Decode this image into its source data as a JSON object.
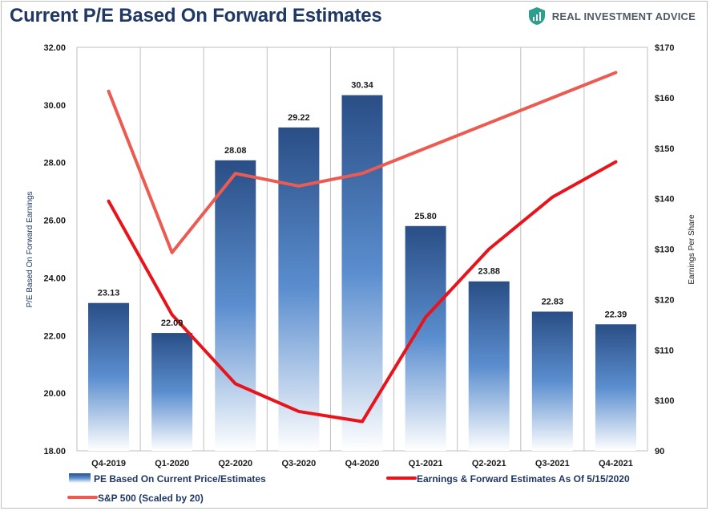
{
  "header": {
    "title": "Current P/E Based On Forward Estimates",
    "brand": "REAL INVESTMENT ADVICE",
    "brand_icon": "shield-logo-icon",
    "brand_color": "#2e9e8f"
  },
  "chart_data": {
    "type": "bar",
    "categories": [
      "Q4-2019",
      "Q1-2020",
      "Q2-2020",
      "Q3-2020",
      "Q4-2020",
      "Q1-2021",
      "Q2-2021",
      "Q3-2021",
      "Q4-2021"
    ],
    "y_left": {
      "label": "P/E Based On Forward Earnings",
      "min": 18,
      "max": 32,
      "ticks": [
        "18.00",
        "20.00",
        "22.00",
        "24.00",
        "26.00",
        "28.00",
        "30.00",
        "32.00"
      ]
    },
    "y_right": {
      "label": "Earnings Per Share",
      "min": 90,
      "max": 170,
      "ticks": [
        "90",
        "$100",
        "$110",
        "$120",
        "$130",
        "$140",
        "$150",
        "$160",
        "$170"
      ]
    },
    "series": [
      {
        "name": "PE Based On Current Price/Estimates",
        "type": "bar",
        "axis": "left",
        "values": [
          23.13,
          22.09,
          28.08,
          29.22,
          30.34,
          25.8,
          23.88,
          22.83,
          22.39
        ],
        "labels": [
          "23.13",
          "22.09",
          "28.08",
          "29.22",
          "30.34",
          "25.80",
          "23.88",
          "22.83",
          "22.39"
        ],
        "color_top": "#2a4e86",
        "color_mid": "#5b8ecf",
        "color_bottom": "#ffffff"
      },
      {
        "name": "Earnings & Forward Estimates As Of 5/15/2020",
        "type": "line",
        "axis": "right",
        "values": [
          139.5,
          117,
          103.3,
          97.8,
          95.8,
          116.5,
          130,
          140.3,
          147.3
        ],
        "color": "#e8141b"
      },
      {
        "name": "S&P 500 (Scaled by 20)",
        "type": "line",
        "axis": "right",
        "values": [
          161.3,
          129.3,
          145,
          142.5,
          145,
          150,
          155,
          160,
          165
        ],
        "color": "#ec5b52"
      }
    ],
    "grid": "vertical"
  }
}
